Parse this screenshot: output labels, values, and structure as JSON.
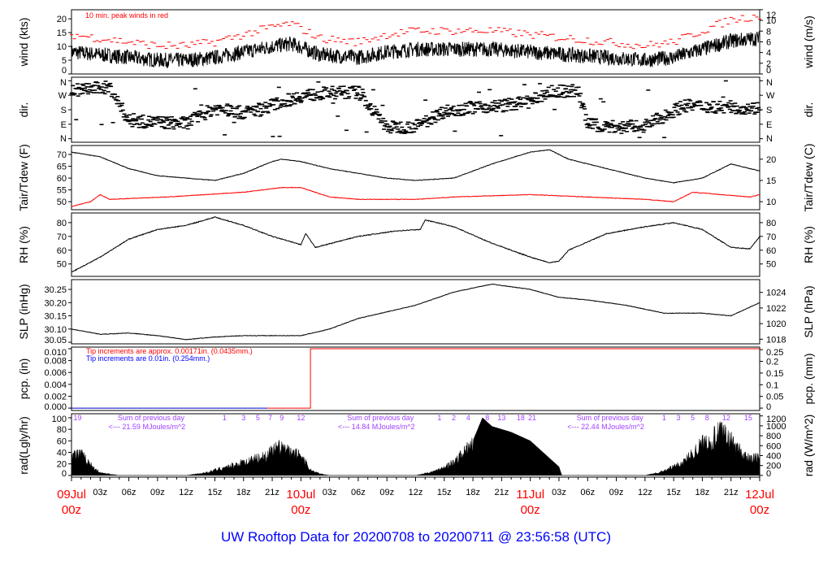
{
  "title": "UW Rooftop Data for 20200708  to  20200711 @ 23:56:58  (UTC)",
  "colors": {
    "peak": "#ff0000",
    "tdew": "#ff0000",
    "pcp_note1": "#ff0000",
    "pcp_note2": "#0000ff",
    "rad_note": "#a040ff",
    "title": "#0000ff",
    "day_label": "#ff0000"
  },
  "chart_data": {
    "type": "line",
    "x_unit": "hours since 09Jul 00z",
    "xlim": [
      0,
      72
    ],
    "x_ticks": [
      "03z",
      "06z",
      "09z",
      "12z",
      "15z",
      "18z",
      "21z",
      "",
      "03z",
      "06z",
      "09z",
      "12z",
      "15z",
      "18z",
      "21z",
      "",
      "03z",
      "06z",
      "09z",
      "12z",
      "15z",
      "18z",
      "21z"
    ],
    "day_labels": [
      {
        "h": 0,
        "day": "09Jul",
        "time": "00z"
      },
      {
        "h": 24,
        "day": "10Jul",
        "time": "00z"
      },
      {
        "h": 48,
        "day": "11Jul",
        "time": "00z"
      },
      {
        "h": 72,
        "day": "12Jul",
        "time": "00z"
      }
    ],
    "panels": [
      {
        "id": "wind",
        "ylabel": "wind (kts)",
        "ylabel_right": "wind (m/s)",
        "ylim": [
          0,
          23.3
        ],
        "ticks": [
          0,
          5,
          10,
          15,
          20
        ],
        "right_ticks": [
          "0",
          "2",
          "4",
          "6",
          "8",
          "10",
          "12"
        ],
        "right_scale": 1.944,
        "annotation": "10 min. peak winds in red",
        "series": [
          {
            "name": "wind speed",
            "points": [
              [
                0,
                8
              ],
              [
                3,
                7
              ],
              [
                6,
                6
              ],
              [
                9,
                5
              ],
              [
                12,
                5
              ],
              [
                15,
                6
              ],
              [
                18,
                8
              ],
              [
                21,
                10
              ],
              [
                23,
                11
              ],
              [
                26,
                7
              ],
              [
                30,
                6
              ],
              [
                33,
                8
              ],
              [
                36,
                9
              ],
              [
                40,
                9
              ],
              [
                44,
                9
              ],
              [
                48,
                8
              ],
              [
                52,
                7
              ],
              [
                56,
                6
              ],
              [
                60,
                5
              ],
              [
                63,
                6
              ],
              [
                66,
                9
              ],
              [
                69,
                12
              ],
              [
                72,
                13
              ]
            ]
          }
        ]
      },
      {
        "id": "dir",
        "ylabel": "dir.",
        "ylabel_right": "dir.",
        "ylim": [
          -22,
          382
        ],
        "ticks_labels": [
          "N",
          "E",
          "S",
          "W",
          "N"
        ],
        "ticks": [
          0,
          90,
          180,
          270,
          360
        ],
        "series": [
          {
            "name": "wind direction (deg)",
            "points": [
              [
                0,
                300
              ],
              [
                4,
                320
              ],
              [
                6,
                110
              ],
              [
                12,
                95
              ],
              [
                15,
                190
              ],
              [
                18,
                160
              ],
              [
                20,
                190
              ],
              [
                24,
                265
              ],
              [
                27,
                285
              ],
              [
                30,
                290
              ],
              [
                33,
                70
              ],
              [
                36,
                75
              ],
              [
                39,
                170
              ],
              [
                42,
                195
              ],
              [
                45,
                205
              ],
              [
                48,
                230
              ],
              [
                50,
                290
              ],
              [
                53,
                300
              ],
              [
                54,
                90
              ],
              [
                57,
                70
              ],
              [
                60,
                80
              ],
              [
                62,
                140
              ],
              [
                64,
                205
              ],
              [
                72,
                190
              ]
            ]
          }
        ]
      },
      {
        "id": "temp",
        "ylabel": "Tair/Tdew (F)",
        "ylabel_right": "Tair/Tdew (C)",
        "ylim": [
          46.6,
          73.8
        ],
        "ticks": [
          50,
          55,
          60,
          65,
          70
        ],
        "right_ticks_c": [
          10,
          15,
          20
        ],
        "series": [
          {
            "name": "Tair",
            "points": [
              [
                0,
                71
              ],
              [
                3,
                69
              ],
              [
                6,
                64
              ],
              [
                9,
                61
              ],
              [
                12,
                60
              ],
              [
                15,
                59
              ],
              [
                18,
                62
              ],
              [
                21,
                67
              ],
              [
                22,
                68
              ],
              [
                24,
                67
              ],
              [
                27,
                64
              ],
              [
                30,
                62
              ],
              [
                33,
                60
              ],
              [
                36,
                59
              ],
              [
                40,
                60
              ],
              [
                44,
                66
              ],
              [
                48,
                71
              ],
              [
                50,
                72
              ],
              [
                52,
                68
              ],
              [
                56,
                64
              ],
              [
                60,
                60
              ],
              [
                63,
                58
              ],
              [
                66,
                60
              ],
              [
                69,
                66
              ],
              [
                72,
                63
              ]
            ]
          },
          {
            "name": "Tdew",
            "points": [
              [
                0,
                48
              ],
              [
                2,
                50
              ],
              [
                3,
                53
              ],
              [
                4,
                51
              ],
              [
                10,
                52
              ],
              [
                18,
                54
              ],
              [
                22,
                56
              ],
              [
                24,
                56
              ],
              [
                27,
                52
              ],
              [
                30,
                51
              ],
              [
                36,
                51
              ],
              [
                40,
                52
              ],
              [
                48,
                53
              ],
              [
                54,
                52
              ],
              [
                60,
                51
              ],
              [
                63,
                50
              ],
              [
                65,
                54
              ],
              [
                68,
                53
              ],
              [
                71,
                52
              ],
              [
                72,
                53
              ]
            ]
          }
        ]
      },
      {
        "id": "rh",
        "ylabel": "RH (%)",
        "ylabel_right": "RH (%)",
        "ylim": [
          41,
          87
        ],
        "ticks": [
          50,
          60,
          70,
          80
        ],
        "series": [
          {
            "name": "RH",
            "points": [
              [
                0,
                44
              ],
              [
                3,
                55
              ],
              [
                6,
                68
              ],
              [
                9,
                75
              ],
              [
                12,
                78
              ],
              [
                15,
                84
              ],
              [
                18,
                78
              ],
              [
                21,
                70
              ],
              [
                24,
                64
              ],
              [
                24.5,
                72
              ],
              [
                25.5,
                62
              ],
              [
                30,
                70
              ],
              [
                34,
                74
              ],
              [
                36.5,
                75
              ],
              [
                37,
                82
              ],
              [
                40,
                77
              ],
              [
                44,
                65
              ],
              [
                48,
                55
              ],
              [
                50,
                51
              ],
              [
                51,
                52
              ],
              [
                52,
                60
              ],
              [
                56,
                72
              ],
              [
                60,
                77
              ],
              [
                63,
                80
              ],
              [
                66,
                75
              ],
              [
                69,
                62
              ],
              [
                71,
                61
              ],
              [
                72,
                70
              ]
            ]
          }
        ]
      },
      {
        "id": "slp",
        "ylabel": "SLP (inHg)",
        "ylabel_right": "SLP (hPa)",
        "ylim": [
          30.044,
          30.287
        ],
        "ticks": [
          30.05,
          30.1,
          30.15,
          30.2,
          30.25
        ],
        "right_ticks_hpa": [
          1018,
          1020,
          1022,
          1024
        ],
        "series": [
          {
            "name": "SLP",
            "points": [
              [
                0,
                30.1
              ],
              [
                3,
                30.08
              ],
              [
                6,
                30.085
              ],
              [
                9,
                30.075
              ],
              [
                12,
                30.06
              ],
              [
                15,
                30.07
              ],
              [
                18,
                30.075
              ],
              [
                24,
                30.075
              ],
              [
                27,
                30.1
              ],
              [
                30,
                30.14
              ],
              [
                36,
                30.19
              ],
              [
                40,
                30.24
              ],
              [
                44,
                30.27
              ],
              [
                48,
                30.25
              ],
              [
                51,
                30.22
              ],
              [
                54,
                30.21
              ],
              [
                58,
                30.19
              ],
              [
                62,
                30.16
              ],
              [
                66,
                30.16
              ],
              [
                69,
                30.15
              ],
              [
                72,
                30.2
              ]
            ]
          }
        ]
      },
      {
        "id": "pcp",
        "ylabel": "pcp. (in)",
        "ylabel_right": "pcp. (mm)",
        "ylim": [
          -0.0004,
          0.01027
        ],
        "ticks": [
          0,
          0.002,
          0.004,
          0.006,
          0.008,
          0.01
        ],
        "right_ticks_mm": [
          0,
          0.05,
          0.1,
          0.15,
          0.2,
          0.25
        ],
        "note1": "Tip increments are approx. 0.00171in. (0.0435mm.)",
        "note2": "Tip increments are 0.01in. (0.254mm.)",
        "series": [
          {
            "name": "precip",
            "points": [
              [
                0,
                0
              ],
              [
                25,
                0
              ],
              [
                25,
                0.01
              ],
              [
                72,
                0.01
              ]
            ]
          }
        ]
      },
      {
        "id": "rad",
        "ylabel": "rad(Lgly/hr)",
        "ylabel_right": "rad (W/m^2)",
        "ylim": [
          -3,
          107
        ],
        "ticks": [
          0,
          20,
          40,
          60,
          80,
          100
        ],
        "right_ticks_w": [
          0,
          200,
          400,
          600,
          800,
          1000,
          1200
        ],
        "series": [
          {
            "name": "radiation",
            "points": [
              [
                0,
                40
              ],
              [
                1,
                40
              ],
              [
                2,
                20
              ],
              [
                3,
                5
              ],
              [
                5,
                0
              ],
              [
                12,
                0
              ],
              [
                14,
                5
              ],
              [
                17,
                20
              ],
              [
                20,
                35
              ],
              [
                22,
                55
              ],
              [
                23,
                40
              ],
              [
                24,
                40
              ],
              [
                25,
                10
              ],
              [
                26,
                3
              ],
              [
                27,
                0
              ],
              [
                36,
                0
              ],
              [
                38,
                8
              ],
              [
                40,
                25
              ],
              [
                42,
                60
              ],
              [
                43,
                100
              ],
              [
                44,
                85
              ],
              [
                46,
                75
              ],
              [
                48,
                60
              ],
              [
                50,
                30
              ],
              [
                51,
                15
              ],
              [
                51.3,
                0
              ],
              [
                60,
                0
              ],
              [
                62,
                8
              ],
              [
                64,
                25
              ],
              [
                66,
                60
              ],
              [
                68,
                80
              ],
              [
                69,
                65
              ],
              [
                70,
                45
              ],
              [
                71,
                30
              ],
              [
                72,
                35
              ]
            ]
          }
        ],
        "annotations": [
          {
            "h": 0.2,
            "text": "19"
          },
          {
            "h": 4.5,
            "text": "Sum of previous day",
            "line2": "<--- 21.59 MJoules/m^2"
          },
          {
            "h": 28.5,
            "text": "Sum of previous day",
            "line2": "<--- 14.84 MJoules/m^2"
          },
          {
            "h": 52.5,
            "text": "Sum of previous day",
            "line2": "<--- 22.44 MJoules/m^2"
          }
        ],
        "hour_marks": [
          [
            16,
            "1"
          ],
          [
            18,
            "3"
          ],
          [
            19.5,
            "5"
          ],
          [
            20.8,
            "7"
          ],
          [
            22,
            "9"
          ],
          [
            24,
            "12"
          ],
          [
            38.5,
            "1"
          ],
          [
            40,
            "2"
          ],
          [
            41.5,
            "4"
          ],
          [
            43.5,
            "8"
          ],
          [
            45,
            "13"
          ],
          [
            47,
            "18"
          ],
          [
            48.2,
            "21"
          ],
          [
            62,
            "1"
          ],
          [
            63.5,
            "3"
          ],
          [
            65,
            "5"
          ],
          [
            66.5,
            "8"
          ],
          [
            68.5,
            "12"
          ],
          [
            70.8,
            "15"
          ]
        ]
      }
    ]
  }
}
